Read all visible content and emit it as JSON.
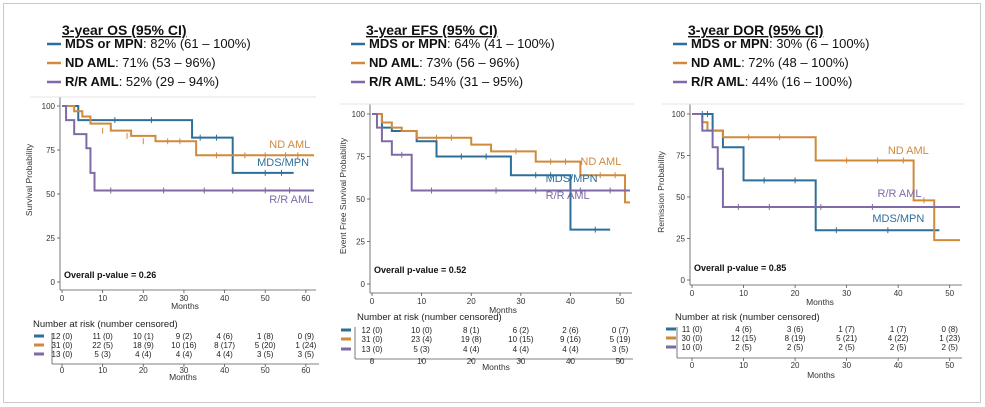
{
  "colors": {
    "mds": "#2e6f99",
    "nd": "#d08a3c",
    "rr": "#7e6aa6"
  },
  "panels": [
    {
      "header": "3-year OS (95% CI)",
      "legend": [
        {
          "key": "mds",
          "label": "MDS or MPN",
          "value": ": 82% (61 – 100%)"
        },
        {
          "key": "nd",
          "label": "ND AML",
          "value": ": 71% (53 – 96%)"
        },
        {
          "key": "rr",
          "label": "R/R AML",
          "value": ": 52% (29 – 94%)"
        }
      ],
      "pvalue": "Overall p-value = 0.26",
      "risk_title": "Number at risk (number censored)",
      "risk_ticks": [
        0,
        10,
        20,
        30,
        40,
        50,
        60
      ],
      "risk_rows": [
        {
          "key": "mds",
          "cells": [
            "12 (0)",
            "11 (0)",
            "10 (1)",
            "9 (2)",
            "4 (6)",
            "1 (8)",
            "0 (9)"
          ]
        },
        {
          "key": "nd",
          "cells": [
            "31 (0)",
            "22 (5)",
            "18 (9)",
            "10 (16)",
            "8 (17)",
            "5 (20)",
            "1 (24)"
          ]
        },
        {
          "key": "rr",
          "cells": [
            "13 (0)",
            "5 (3)",
            "4 (4)",
            "4 (4)",
            "4 (4)",
            "3 (5)",
            "3 (5)"
          ]
        }
      ],
      "risk_xlabel": "Months"
    },
    {
      "header": "3-year EFS (95% CI)",
      "legend": [
        {
          "key": "mds",
          "label": "MDS or MPN",
          "value": ": 64% (41 – 100%)"
        },
        {
          "key": "nd",
          "label": "ND AML",
          "value": ": 73% (56 – 96%)"
        },
        {
          "key": "rr",
          "label": "R/R AML",
          "value": ": 54% (31 – 95%)"
        }
      ],
      "pvalue": "Overall p-value = 0.52",
      "risk_title": "Number at risk (number censored)",
      "risk_ticks": [
        0,
        10,
        20,
        30,
        40,
        50
      ],
      "risk_rows": [
        {
          "key": "mds",
          "cells": [
            "12 (0)",
            "10 (0)",
            "8 (1)",
            "6 (2)",
            "2 (6)",
            "0 (7)"
          ]
        },
        {
          "key": "nd",
          "cells": [
            "31 (0)",
            "23 (4)",
            "19 (8)",
            "10 (15)",
            "9 (16)",
            "5 (19)"
          ]
        },
        {
          "key": "rr",
          "cells": [
            "13 (0)",
            "5 (3)",
            "4 (4)",
            "4 (4)",
            "4 (4)",
            "3 (5)"
          ]
        }
      ],
      "risk_xlabel": "Months"
    },
    {
      "header": "3-year DOR (95% CI)",
      "legend": [
        {
          "key": "mds",
          "label": "MDS or MPN",
          "value": ": 30% (6 – 100%)"
        },
        {
          "key": "nd",
          "label": "ND AML",
          "value": ": 72% (48 – 100%)"
        },
        {
          "key": "rr",
          "label": "R/R AML",
          "value": ": 44% (16 – 100%)"
        }
      ],
      "pvalue": "Overall p-value = 0.85",
      "risk_title": "Number at risk (number censored)",
      "risk_ticks": [
        0,
        10,
        20,
        30,
        40,
        50
      ],
      "risk_rows": [
        {
          "key": "mds",
          "cells": [
            "11 (0)",
            "4 (6)",
            "3 (6)",
            "1 (7)",
            "1 (7)",
            "0 (8)"
          ]
        },
        {
          "key": "nd",
          "cells": [
            "30 (0)",
            "12 (15)",
            "8 (19)",
            "5 (21)",
            "4 (22)",
            "1 (23)"
          ]
        },
        {
          "key": "rr",
          "cells": [
            "10 (0)",
            "2 (5)",
            "2 (5)",
            "2 (5)",
            "2 (5)",
            "2 (5)"
          ]
        }
      ],
      "risk_xlabel": "Months"
    }
  ],
  "chart_data": [
    {
      "type": "line",
      "title": "3-year OS (95% CI)",
      "xlabel": "Months",
      "ylabel": "Survival Probability",
      "xlim": [
        0,
        62
      ],
      "ylim": [
        0,
        100
      ],
      "xticks": [
        0,
        10,
        20,
        30,
        40,
        50,
        60
      ],
      "yticks": [
        0,
        25,
        50,
        75,
        100
      ],
      "series": [
        {
          "key": "mds",
          "name": "MDS/MPN",
          "x": [
            0,
            4,
            32,
            42,
            57
          ],
          "y": [
            100,
            92,
            82,
            62,
            62
          ]
        },
        {
          "key": "nd",
          "name": "ND AML",
          "x": [
            0,
            3,
            5,
            7,
            12,
            17,
            23,
            33,
            62
          ],
          "y": [
            100,
            97,
            94,
            90,
            86,
            83,
            80,
            72,
            72
          ]
        },
        {
          "key": "rr",
          "name": "R/R AML",
          "x": [
            0,
            1,
            3,
            6,
            7,
            8,
            62
          ],
          "y": [
            100,
            92,
            84,
            76,
            62,
            52,
            52
          ]
        }
      ],
      "censor": {
        "mds": [
          [
            13,
            92
          ],
          [
            22,
            92
          ],
          [
            34,
            82
          ],
          [
            38,
            82
          ],
          [
            50,
            62
          ],
          [
            54,
            62
          ]
        ],
        "nd": [
          [
            10,
            86
          ],
          [
            16,
            83
          ],
          [
            20,
            80
          ],
          [
            26,
            80
          ],
          [
            29,
            80
          ],
          [
            38,
            72
          ],
          [
            45,
            72
          ],
          [
            50,
            72
          ],
          [
            55,
            72
          ],
          [
            58,
            72
          ]
        ],
        "rr": [
          [
            12,
            52
          ],
          [
            25,
            52
          ],
          [
            35,
            52
          ],
          [
            42,
            52
          ],
          [
            50,
            52
          ],
          [
            56,
            52
          ]
        ]
      },
      "annotations": [
        {
          "key": "nd",
          "text": "ND AML",
          "x": 51,
          "y": 76
        },
        {
          "key": "mds",
          "text": "MDS/MPN",
          "x": 48,
          "y": 66
        },
        {
          "key": "rr",
          "text": "R/R AML",
          "x": 51,
          "y": 45
        }
      ]
    },
    {
      "type": "line",
      "title": "3-year EFS (95% CI)",
      "xlabel": "Months",
      "ylabel": "Event Free Survival Probability",
      "xlim": [
        0,
        52
      ],
      "ylim": [
        0,
        100
      ],
      "xticks": [
        0,
        10,
        20,
        30,
        40,
        50
      ],
      "yticks": [
        0,
        25,
        50,
        75,
        100
      ],
      "series": [
        {
          "key": "mds",
          "name": "MDS/MPN",
          "x": [
            0,
            2,
            4,
            9,
            13,
            28,
            40,
            48
          ],
          "y": [
            100,
            92,
            90,
            84,
            75,
            64,
            32,
            32
          ]
        },
        {
          "key": "nd",
          "name": "ND AML",
          "x": [
            0,
            2,
            4,
            6,
            9,
            20,
            24,
            33,
            42,
            51,
            52
          ],
          "y": [
            100,
            95,
            92,
            90,
            86,
            82,
            78,
            72,
            64,
            48,
            48
          ]
        },
        {
          "key": "rr",
          "name": "R/R AML",
          "x": [
            0,
            1,
            2,
            4,
            8,
            52
          ],
          "y": [
            100,
            92,
            84,
            76,
            55,
            55
          ]
        }
      ],
      "censor": {
        "mds": [
          [
            18,
            75
          ],
          [
            23,
            75
          ],
          [
            33,
            64
          ],
          [
            36,
            64
          ],
          [
            45,
            32
          ]
        ],
        "nd": [
          [
            13,
            86
          ],
          [
            16,
            86
          ],
          [
            29,
            78
          ],
          [
            36,
            72
          ],
          [
            39,
            72
          ],
          [
            46,
            64
          ],
          [
            49,
            64
          ]
        ],
        "rr": [
          [
            6,
            76
          ],
          [
            12,
            55
          ],
          [
            25,
            55
          ],
          [
            33,
            55
          ],
          [
            42,
            55
          ],
          [
            48,
            55
          ]
        ]
      },
      "annotations": [
        {
          "key": "nd",
          "text": "ND AML",
          "x": 42,
          "y": 70
        },
        {
          "key": "mds",
          "text": "MDS/MPN",
          "x": 35,
          "y": 60
        },
        {
          "key": "rr",
          "text": "R/R AML",
          "x": 35,
          "y": 50
        }
      ]
    },
    {
      "type": "line",
      "title": "3-year DOR (95% CI)",
      "xlabel": "Months",
      "ylabel": "Remission Probability",
      "xlim": [
        0,
        52
      ],
      "ylim": [
        0,
        100
      ],
      "xticks": [
        0,
        10,
        20,
        30,
        40,
        50
      ],
      "yticks": [
        0,
        25,
        50,
        75,
        100
      ],
      "series": [
        {
          "key": "mds",
          "name": "MDS/MPN",
          "x": [
            0,
            4,
            6,
            10,
            24,
            48
          ],
          "y": [
            100,
            90,
            80,
            60,
            30,
            30
          ]
        },
        {
          "key": "nd",
          "name": "ND AML",
          "x": [
            0,
            2,
            3,
            6,
            24,
            43,
            47,
            52
          ],
          "y": [
            100,
            95,
            90,
            86,
            72,
            48,
            24,
            24
          ]
        },
        {
          "key": "rr",
          "name": "R/R AML",
          "x": [
            0,
            2,
            4,
            5,
            6,
            52
          ],
          "y": [
            100,
            90,
            80,
            67,
            44,
            44
          ]
        }
      ],
      "censor": {
        "mds": [
          [
            2,
            100
          ],
          [
            3,
            100
          ],
          [
            14,
            60
          ],
          [
            20,
            60
          ],
          [
            28,
            30
          ],
          [
            38,
            30
          ]
        ],
        "nd": [
          [
            11,
            86
          ],
          [
            17,
            86
          ],
          [
            30,
            72
          ],
          [
            36,
            72
          ],
          [
            41,
            72
          ],
          [
            45,
            48
          ]
        ],
        "rr": [
          [
            9,
            44
          ],
          [
            15,
            44
          ],
          [
            25,
            44
          ],
          [
            35,
            44
          ]
        ]
      },
      "annotations": [
        {
          "key": "nd",
          "text": "ND AML",
          "x": 38,
          "y": 76
        },
        {
          "key": "rr",
          "text": "R/R AML",
          "x": 36,
          "y": 50
        },
        {
          "key": "mds",
          "text": "MDS/MPN",
          "x": 35,
          "y": 35
        }
      ]
    }
  ]
}
